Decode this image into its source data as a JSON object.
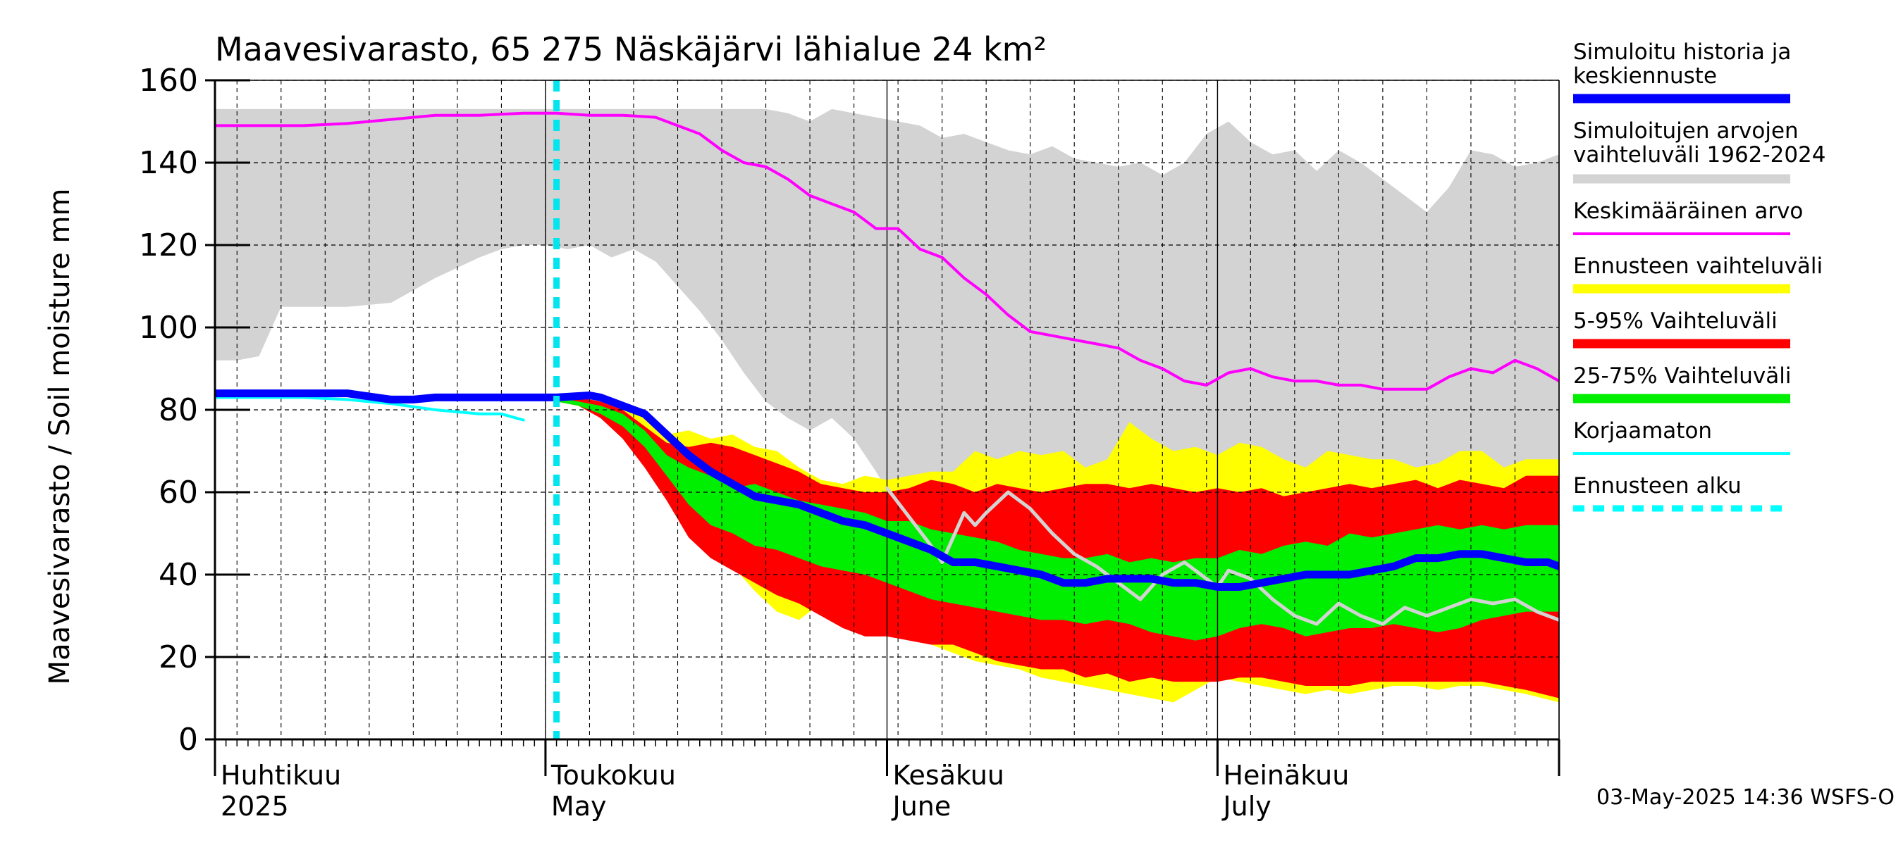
{
  "chart_data": {
    "type": "area",
    "title": "Maavesivarasto, 65 275 Näskäjärvi lähialue 24 km²",
    "ylabel": "Maavesivarasto / Soil moisture   mm",
    "xlabel": "",
    "ylim": [
      0,
      160
    ],
    "yticks": [
      0,
      20,
      40,
      60,
      80,
      100,
      120,
      140,
      160
    ],
    "xrange_days": [
      0,
      122
    ],
    "grid": true,
    "forecast_start_day": 31,
    "month_labels": [
      {
        "day": 0,
        "fi": "Huhtikuu",
        "en": "2025"
      },
      {
        "day": 30,
        "fi": "Toukokuu",
        "en": "May"
      },
      {
        "day": 61,
        "fi": "Kesäkuu",
        "en": "June"
      },
      {
        "day": 91,
        "fi": "Heinäkuu",
        "en": "July"
      }
    ],
    "month_starts": [
      0,
      30,
      61,
      91,
      122
    ],
    "series": [
      {
        "name": "Simuloitujen arvojen vaihteluväli 1962-2024",
        "kind": "band",
        "color": "#d3d3d3",
        "x": [
          0,
          2,
          4,
          6,
          8,
          12,
          16,
          20,
          24,
          26,
          28,
          30,
          32,
          34,
          36,
          38,
          40,
          42,
          44,
          46,
          48,
          50,
          52,
          54,
          56,
          58,
          60,
          62,
          64,
          66,
          68,
          70,
          72,
          74,
          76,
          78,
          80,
          82,
          84,
          86,
          88,
          90,
          92,
          94,
          96,
          98,
          100,
          102,
          104,
          106,
          108,
          110,
          112,
          114,
          116,
          118,
          120,
          122
        ],
        "upper": [
          153,
          153,
          153,
          153,
          153,
          153,
          153,
          153,
          153,
          153,
          153,
          153,
          153,
          153,
          153,
          153,
          153,
          153,
          153,
          153,
          153,
          153,
          152,
          150,
          153,
          152,
          151,
          150,
          149,
          146,
          147,
          145,
          143,
          142,
          144,
          141,
          140,
          139,
          140,
          137,
          140,
          147,
          150,
          145,
          142,
          143,
          138,
          143,
          140,
          136,
          132,
          128,
          134,
          143,
          142,
          139,
          140,
          142
        ],
        "lower": [
          92,
          92,
          93,
          105,
          105,
          105,
          106,
          112,
          117,
          119,
          120,
          120,
          119,
          120,
          117,
          119,
          116,
          110,
          104,
          97,
          89,
          82,
          78,
          75,
          78,
          73,
          65,
          56,
          52,
          48,
          45,
          43,
          41,
          40,
          39,
          42,
          48,
          55,
          60,
          62,
          61,
          62,
          63,
          64,
          65,
          64,
          63,
          65,
          64,
          63,
          63,
          62,
          65,
          66,
          64,
          65,
          64,
          64
        ]
      },
      {
        "name": "Ennusteen vaihteluväli",
        "kind": "band",
        "color": "#ffff00",
        "x": [
          31,
          33,
          35,
          37,
          39,
          41,
          43,
          45,
          47,
          49,
          51,
          53,
          55,
          57,
          59,
          61,
          63,
          65,
          67,
          69,
          71,
          73,
          75,
          77,
          79,
          81,
          83,
          85,
          87,
          89,
          91,
          93,
          95,
          97,
          99,
          101,
          103,
          105,
          107,
          109,
          111,
          113,
          115,
          117,
          119,
          122
        ],
        "upper": [
          83,
          83,
          82,
          81,
          78,
          74,
          75,
          73,
          74,
          71,
          70,
          66,
          63,
          62,
          64,
          63,
          64,
          65,
          65,
          70,
          68,
          70,
          69,
          70,
          66,
          68,
          77,
          73,
          70,
          71,
          69,
          72,
          71,
          68,
          66,
          70,
          69,
          68,
          68,
          66,
          67,
          70,
          70,
          66,
          68,
          68
        ],
        "lower": [
          82,
          81,
          79,
          76,
          72,
          66,
          58,
          50,
          42,
          36,
          31,
          29,
          33,
          35,
          33,
          30,
          26,
          23,
          21,
          19,
          18,
          17,
          15,
          14,
          13,
          12,
          11,
          10,
          9,
          12,
          15,
          14,
          13,
          12,
          11,
          12,
          11,
          12,
          13,
          13,
          12,
          13,
          13,
          12,
          11,
          9
        ]
      },
      {
        "name": "5-95% Vaihteluväli",
        "kind": "band",
        "color": "#ff0000",
        "x": [
          31,
          33,
          35,
          37,
          39,
          41,
          43,
          45,
          47,
          49,
          51,
          53,
          55,
          57,
          59,
          61,
          63,
          65,
          67,
          69,
          71,
          73,
          75,
          77,
          79,
          81,
          83,
          85,
          87,
          89,
          91,
          93,
          95,
          97,
          99,
          101,
          103,
          105,
          107,
          109,
          111,
          113,
          115,
          117,
          119,
          122
        ],
        "upper": [
          83,
          83,
          82,
          80,
          76,
          72,
          71,
          72,
          71,
          69,
          67,
          65,
          62,
          61,
          60,
          60,
          61,
          63,
          62,
          60,
          62,
          61,
          60,
          61,
          62,
          62,
          61,
          62,
          61,
          60,
          61,
          60,
          61,
          59,
          60,
          61,
          62,
          61,
          62,
          63,
          61,
          63,
          62,
          61,
          64,
          64
        ],
        "lower": [
          82,
          81,
          78,
          73,
          66,
          58,
          49,
          44,
          41,
          38,
          35,
          33,
          30,
          27,
          25,
          25,
          24,
          23,
          23,
          21,
          19,
          18,
          17,
          17,
          15,
          16,
          14,
          15,
          14,
          14,
          14,
          15,
          15,
          14,
          13,
          13,
          13,
          14,
          14,
          14,
          14,
          14,
          14,
          13,
          12,
          10
        ]
      },
      {
        "name": "25-75% Vaihteluväli",
        "kind": "band",
        "color": "#00ee00",
        "x": [
          31,
          33,
          35,
          37,
          39,
          41,
          43,
          45,
          47,
          49,
          51,
          53,
          55,
          57,
          59,
          61,
          63,
          65,
          67,
          69,
          71,
          73,
          75,
          77,
          79,
          81,
          83,
          85,
          87,
          89,
          91,
          93,
          95,
          97,
          99,
          101,
          103,
          105,
          107,
          109,
          111,
          113,
          115,
          117,
          119,
          122
        ],
        "upper": [
          83,
          82,
          81,
          79,
          75,
          69,
          66,
          64,
          61,
          62,
          60,
          58,
          57,
          56,
          55,
          53,
          53,
          51,
          50,
          49,
          48,
          46,
          45,
          44,
          44,
          45,
          43,
          44,
          43,
          44,
          44,
          46,
          45,
          47,
          48,
          47,
          50,
          49,
          50,
          51,
          52,
          51,
          52,
          51,
          52,
          52
        ],
        "lower": [
          82,
          81,
          79,
          76,
          71,
          64,
          57,
          52,
          50,
          47,
          46,
          44,
          42,
          41,
          40,
          38,
          36,
          34,
          33,
          32,
          31,
          30,
          29,
          29,
          28,
          29,
          28,
          26,
          25,
          24,
          25,
          27,
          28,
          27,
          25,
          26,
          27,
          27,
          28,
          27,
          26,
          27,
          29,
          30,
          31,
          31
        ]
      },
      {
        "name": "Keskimääräinen arvo",
        "kind": "line",
        "color": "#ff00ff",
        "width": 4,
        "x": [
          0,
          4,
          8,
          12,
          16,
          20,
          24,
          28,
          31,
          34,
          37,
          40,
          42,
          44,
          46,
          48,
          50,
          52,
          54,
          56,
          58,
          60,
          62,
          64,
          66,
          68,
          70,
          72,
          74,
          76,
          78,
          80,
          82,
          84,
          86,
          88,
          90,
          92,
          94,
          96,
          98,
          100,
          102,
          104,
          106,
          108,
          110,
          112,
          114,
          116,
          118,
          120,
          122
        ],
        "y": [
          149,
          149,
          149,
          149.5,
          150.5,
          151.5,
          151.5,
          152,
          152,
          151.5,
          151.5,
          151,
          149,
          147,
          143,
          140,
          139,
          136,
          132,
          130,
          128,
          124,
          124,
          119,
          117,
          112,
          108,
          103,
          99,
          98,
          97,
          96,
          95,
          92,
          90,
          87,
          86,
          89,
          90,
          88,
          87,
          87,
          86,
          86,
          85,
          85,
          85,
          88,
          90,
          89,
          92,
          90,
          87
        ]
      },
      {
        "name": "Korjaamaton",
        "kind": "line",
        "color": "#00ffff",
        "width": 4,
        "x": [
          0,
          4,
          8,
          12,
          16,
          20,
          24,
          26,
          28
        ],
        "y": [
          83,
          83,
          83,
          82.5,
          81.5,
          80,
          79,
          79,
          77.5
        ]
      },
      {
        "name": "history",
        "kind": "line",
        "color": "#d3d3d3",
        "width": 5,
        "x": [
          61,
          63,
          65,
          66,
          67,
          68,
          69,
          70,
          72,
          74,
          76,
          78,
          80,
          82,
          84,
          86,
          88,
          90,
          91,
          92,
          94,
          96,
          98,
          100,
          102,
          104,
          106,
          108,
          110,
          112,
          114,
          116,
          118,
          120,
          122
        ],
        "y": [
          61,
          54,
          47,
          43,
          49,
          55,
          52,
          55,
          60,
          56,
          50,
          45,
          42,
          38,
          34,
          40,
          43,
          39,
          37,
          41,
          39,
          34,
          30,
          28,
          33,
          30,
          28,
          32,
          30,
          32,
          34,
          33,
          34,
          31,
          29
        ]
      },
      {
        "name": "Simuloitu historia ja keskiennuste",
        "kind": "line",
        "color": "#0000ff",
        "width": 11,
        "x": [
          0,
          4,
          8,
          12,
          16,
          18,
          20,
          24,
          28,
          31,
          34,
          35,
          37,
          39,
          41,
          43,
          45,
          47,
          49,
          51,
          53,
          55,
          57,
          59,
          61,
          63,
          65,
          67,
          69,
          71,
          73,
          75,
          77,
          79,
          81,
          83,
          85,
          87,
          89,
          91,
          93,
          95,
          97,
          99,
          101,
          103,
          105,
          107,
          109,
          111,
          113,
          115,
          117,
          119,
          121,
          122
        ],
        "y": [
          84,
          84,
          84,
          84,
          82.5,
          82.5,
          83,
          83,
          83,
          83,
          83.5,
          83,
          81,
          79,
          74,
          69,
          65,
          62,
          59,
          58,
          57,
          55,
          53,
          52,
          50,
          48,
          46,
          43,
          43,
          42,
          41,
          40,
          38,
          38,
          39,
          39,
          39,
          38,
          38,
          37,
          37,
          38,
          39,
          40,
          40,
          40,
          41,
          42,
          44,
          44,
          45,
          45,
          44,
          43,
          43,
          42
        ]
      }
    ],
    "legend": [
      {
        "label": "Simuloitu historia ja keskiennuste",
        "color": "#0000ff",
        "style": "thick"
      },
      {
        "label": "Simuloitujen arvojen vaihteluväli 1962-2024",
        "color": "#d3d3d3",
        "style": "thick"
      },
      {
        "label": "Keskimääräinen arvo",
        "color": "#ff00ff",
        "style": "thin"
      },
      {
        "label": "Ennusteen vaihteluväli",
        "color": "#ffff00",
        "style": "thick"
      },
      {
        "label": "5-95% Vaihteluväli",
        "color": "#ff0000",
        "style": "thick"
      },
      {
        "label": "25-75% Vaihteluväli",
        "color": "#00ee00",
        "style": "thick"
      },
      {
        "label": "Korjaamaton",
        "color": "#00ffff",
        "style": "thin"
      },
      {
        "label": "Ennusteen alku",
        "color": "#00ffff",
        "style": "dashed"
      }
    ],
    "footer": "03-May-2025 14:36 WSFS-O"
  }
}
